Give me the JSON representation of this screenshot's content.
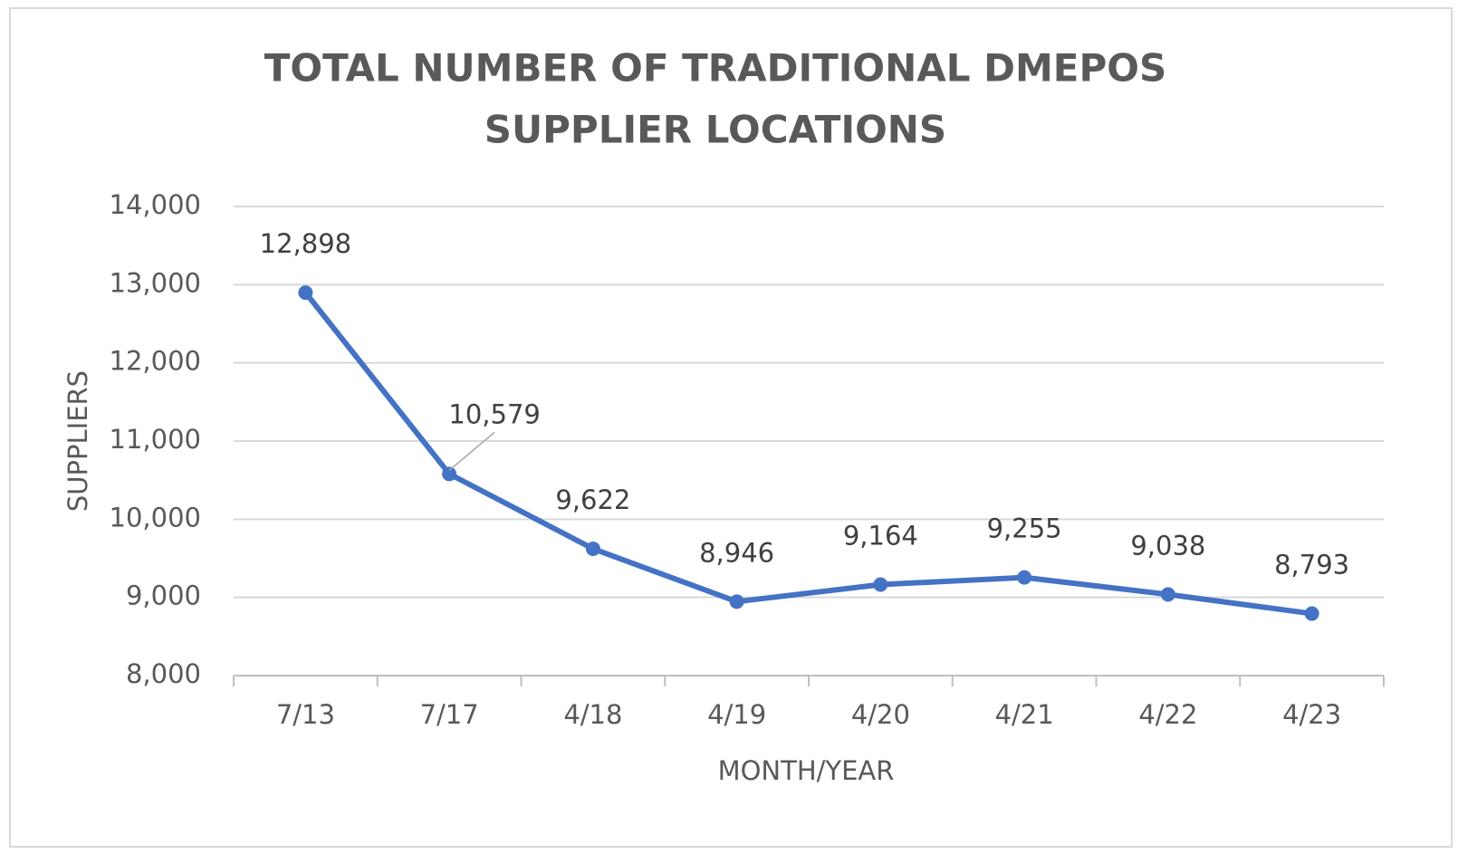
{
  "chart_data": {
    "type": "line",
    "title": [
      "TOTAL NUMBER OF TRADITIONAL DMEPOS",
      "SUPPLIER LOCATIONS"
    ],
    "x_label": "MONTH/YEAR",
    "y_label": "SUPPLIERS",
    "categories": [
      "7/13",
      "7/17",
      "4/18",
      "4/19",
      "4/20",
      "4/21",
      "4/22",
      "4/23"
    ],
    "series": [
      {
        "name": "Suppliers",
        "color": "#4472c4",
        "values": [
          12898,
          10579,
          9622,
          8946,
          9164,
          9255,
          9038,
          8793
        ],
        "value_labels": [
          "12,898",
          "10,579",
          "9,622",
          "8,946",
          "9,164",
          "9,255",
          "9,038",
          "8,793"
        ]
      }
    ],
    "ylim": [
      8000,
      14000
    ],
    "yticks": [
      {
        "value": 8000,
        "label": "8,000"
      },
      {
        "value": 9000,
        "label": "9,000"
      },
      {
        "value": 10000,
        "label": "10,000"
      },
      {
        "value": 11000,
        "label": "11,000"
      },
      {
        "value": 12000,
        "label": "12,000"
      },
      {
        "value": 13000,
        "label": "13,000"
      },
      {
        "value": 14000,
        "label": "14,000"
      }
    ],
    "grid": true
  }
}
